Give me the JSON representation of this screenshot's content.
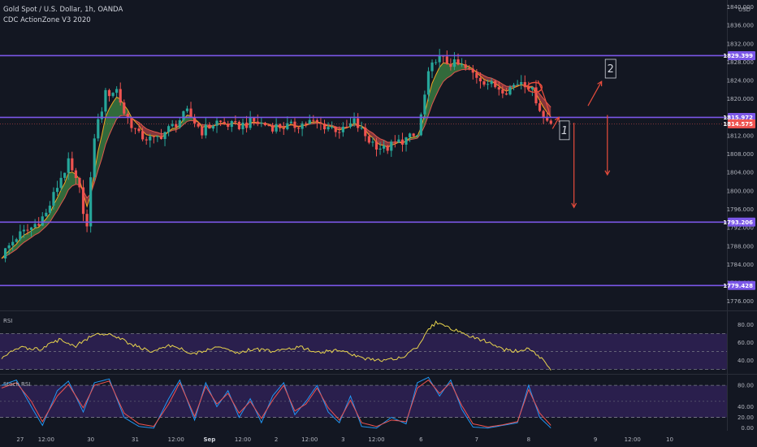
{
  "header": {
    "symbol_line": "Gold Spot / U.S. Dollar, 1h, OANDA",
    "indicator_line": "CDC ActionZone V3 2020"
  },
  "panes": {
    "rsi_label": "RSI",
    "stoch_label": "Stoch RSI"
  },
  "colors": {
    "background": "#131722",
    "bull": "#26a69a",
    "bear": "#ef5350",
    "level_line": "#7b57e8",
    "cloud_bull": "#4caf50",
    "cloud_bear": "#e05050",
    "fast_ema": "#f5a623",
    "rsi_line": "#e8d44d",
    "stoch_k": "#2196f3",
    "stoch_d": "#ef5350",
    "band_fill": "#2a1f4d",
    "annotation": "#e74c3c"
  },
  "chart_data": [
    {
      "type": "candlestick",
      "title": "Gold Spot / U.S. Dollar, 1h, OANDA",
      "unit": "USD",
      "y_ticks": [
        1840.0,
        1836.0,
        1832.0,
        1828.0,
        1824.0,
        1820.0,
        1816.0,
        1812.0,
        1808.0,
        1804.0,
        1800.0,
        1796.0,
        1792.0,
        1788.0,
        1784.0,
        1780.0,
        1776.0
      ],
      "ylim": [
        1774.0,
        1841.5
      ],
      "x_ticks": [
        "27",
        "12:00",
        "30",
        "31",
        "12:00",
        "Sep",
        "12:00",
        "2",
        "12:00",
        "3",
        "12:00",
        "6",
        "7",
        "8",
        "9",
        "12:00",
        "10"
      ],
      "x_range_bars": [
        0,
        195
      ],
      "last_price": 1814.575,
      "levels": [
        {
          "price": 1829.399,
          "label": "1829.399"
        },
        {
          "price": 1815.972,
          "label": "1815.972"
        },
        {
          "price": 1793.206,
          "label": "1793.206"
        },
        {
          "price": 1779.428,
          "label": "1779.428"
        }
      ],
      "last_price_label": "1814.575",
      "path_points": [
        [
          0,
          1786
        ],
        [
          4,
          1790
        ],
        [
          8,
          1792
        ],
        [
          12,
          1795
        ],
        [
          16,
          1803
        ],
        [
          18,
          1806
        ],
        [
          21,
          1800
        ],
        [
          23,
          1792
        ],
        [
          25,
          1812
        ],
        [
          28,
          1821
        ],
        [
          31,
          1822
        ],
        [
          33,
          1817
        ],
        [
          37,
          1812
        ],
        [
          41,
          1811
        ],
        [
          46,
          1814
        ],
        [
          50,
          1817
        ],
        [
          54,
          1813
        ],
        [
          58,
          1815
        ],
        [
          63,
          1814
        ],
        [
          68,
          1815
        ],
        [
          73,
          1814
        ],
        [
          78,
          1814
        ],
        [
          83,
          1815
        ],
        [
          88,
          1814
        ],
        [
          92,
          1813
        ],
        [
          95,
          1815
        ],
        [
          99,
          1811
        ],
        [
          103,
          1809
        ],
        [
          108,
          1811
        ],
        [
          112,
          1812
        ],
        [
          115,
          1825
        ],
        [
          117,
          1829
        ],
        [
          120,
          1828
        ],
        [
          124,
          1827
        ],
        [
          128,
          1825
        ],
        [
          132,
          1823
        ],
        [
          136,
          1822
        ],
        [
          140,
          1824
        ],
        [
          142,
          1823
        ],
        [
          144,
          1820
        ],
        [
          146,
          1816
        ],
        [
          148,
          1814.6
        ]
      ],
      "annotations": {
        "box1": "1",
        "box2": "2"
      }
    },
    {
      "type": "line",
      "title": "RSI",
      "y_ticks": [
        80.0,
        60.0,
        40.0
      ],
      "ylim": [
        25,
        95
      ],
      "bands": [
        70,
        50,
        30
      ],
      "series": [
        {
          "values": [
            [
              0,
              43
            ],
            [
              5,
              55
            ],
            [
              10,
              52
            ],
            [
              16,
              64
            ],
            [
              20,
              56
            ],
            [
              25,
              70
            ],
            [
              30,
              68
            ],
            [
              35,
              58
            ],
            [
              40,
              50
            ],
            [
              46,
              57
            ],
            [
              52,
              47
            ],
            [
              58,
              56
            ],
            [
              63,
              48
            ],
            [
              68,
              53
            ],
            [
              74,
              50
            ],
            [
              80,
              55
            ],
            [
              86,
              49
            ],
            [
              92,
              52
            ],
            [
              97,
              42
            ],
            [
              103,
              40
            ],
            [
              108,
              44
            ],
            [
              112,
              55
            ],
            [
              115,
              75
            ],
            [
              117,
              82
            ],
            [
              120,
              78
            ],
            [
              125,
              68
            ],
            [
              130,
              62
            ],
            [
              135,
              52
            ],
            [
              140,
              50
            ],
            [
              142,
              55
            ],
            [
              145,
              44
            ],
            [
              148,
              29
            ]
          ]
        }
      ]
    },
    {
      "type": "line",
      "title": "Stoch RSI",
      "y_ticks": [
        80.0,
        40.0,
        20.0,
        0.0
      ],
      "ylim": [
        -5,
        100
      ],
      "bands": [
        80,
        20
      ],
      "series": [
        {
          "values": [
            [
              0,
              80
            ],
            [
              4,
              90
            ],
            [
              8,
              40
            ],
            [
              11,
              5
            ],
            [
              15,
              70
            ],
            [
              18,
              88
            ],
            [
              22,
              30
            ],
            [
              25,
              85
            ],
            [
              29,
              92
            ],
            [
              33,
              20
            ],
            [
              37,
              3
            ],
            [
              41,
              0
            ],
            [
              45,
              55
            ],
            [
              48,
              90
            ],
            [
              52,
              15
            ],
            [
              55,
              85
            ],
            [
              58,
              40
            ],
            [
              61,
              70
            ],
            [
              64,
              20
            ],
            [
              67,
              55
            ],
            [
              70,
              10
            ],
            [
              73,
              60
            ],
            [
              76,
              85
            ],
            [
              79,
              25
            ],
            [
              82,
              50
            ],
            [
              85,
              80
            ],
            [
              88,
              30
            ],
            [
              91,
              10
            ],
            [
              94,
              60
            ],
            [
              97,
              3
            ],
            [
              101,
              0
            ],
            [
              105,
              20
            ],
            [
              109,
              8
            ],
            [
              112,
              85
            ],
            [
              115,
              95
            ],
            [
              118,
              60
            ],
            [
              121,
              90
            ],
            [
              124,
              35
            ],
            [
              127,
              2
            ],
            [
              131,
              0
            ],
            [
              135,
              5
            ],
            [
              139,
              10
            ],
            [
              142,
              80
            ],
            [
              145,
              20
            ],
            [
              148,
              0
            ]
          ]
        },
        {
          "values": [
            [
              0,
              75
            ],
            [
              4,
              85
            ],
            [
              8,
              50
            ],
            [
              11,
              12
            ],
            [
              15,
              60
            ],
            [
              18,
              82
            ],
            [
              22,
              38
            ],
            [
              25,
              80
            ],
            [
              29,
              88
            ],
            [
              33,
              28
            ],
            [
              37,
              8
            ],
            [
              41,
              3
            ],
            [
              45,
              45
            ],
            [
              48,
              85
            ],
            [
              52,
              22
            ],
            [
              55,
              78
            ],
            [
              58,
              45
            ],
            [
              61,
              65
            ],
            [
              64,
              28
            ],
            [
              67,
              50
            ],
            [
              70,
              18
            ],
            [
              73,
              52
            ],
            [
              76,
              80
            ],
            [
              79,
              32
            ],
            [
              82,
              45
            ],
            [
              85,
              75
            ],
            [
              88,
              38
            ],
            [
              91,
              15
            ],
            [
              94,
              52
            ],
            [
              97,
              10
            ],
            [
              101,
              3
            ],
            [
              105,
              15
            ],
            [
              109,
              12
            ],
            [
              112,
              75
            ],
            [
              115,
              90
            ],
            [
              118,
              65
            ],
            [
              121,
              85
            ],
            [
              124,
              42
            ],
            [
              127,
              8
            ],
            [
              131,
              2
            ],
            [
              135,
              6
            ],
            [
              139,
              12
            ],
            [
              142,
              72
            ],
            [
              145,
              28
            ],
            [
              148,
              5
            ]
          ]
        }
      ]
    }
  ]
}
